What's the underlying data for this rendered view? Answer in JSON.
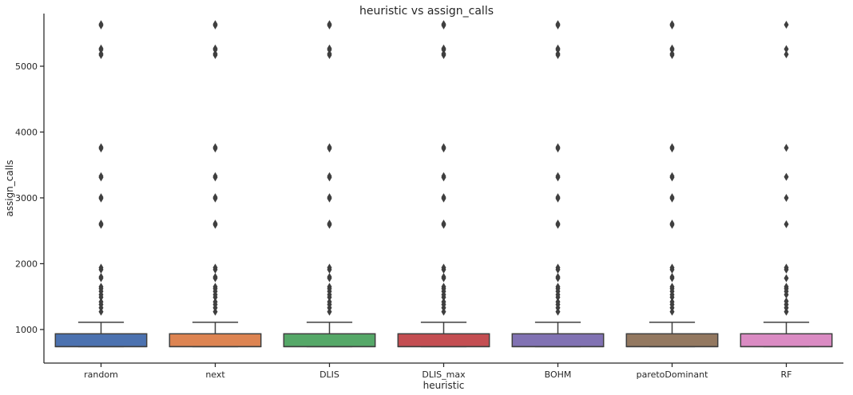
{
  "chart_data": {
    "type": "box",
    "title": "heuristic vs assign_calls",
    "xlabel": "heuristic",
    "ylabel": "assign_calls",
    "ylim": [
      490,
      5800
    ],
    "yticks": [
      1000,
      2000,
      3000,
      4000,
      5000
    ],
    "grid": false,
    "categories": [
      "random",
      "next",
      "DLIS",
      "DLIS_max",
      "BOHM",
      "paretoDominant",
      "RF"
    ],
    "colors": [
      "#4c72b0",
      "#dd8452",
      "#55a868",
      "#c44e52",
      "#8172b3",
      "#937860",
      "#da8bc3"
    ],
    "boxes": [
      {
        "name": "random",
        "q1": 740,
        "median": 740,
        "q3": 935,
        "whisker_low": 740,
        "whisker_high": 1110
      },
      {
        "name": "next",
        "q1": 740,
        "median": 740,
        "q3": 935,
        "whisker_low": 740,
        "whisker_high": 1110
      },
      {
        "name": "DLIS",
        "q1": 740,
        "median": 740,
        "q3": 935,
        "whisker_low": 740,
        "whisker_high": 1110
      },
      {
        "name": "DLIS_max",
        "q1": 740,
        "median": 740,
        "q3": 935,
        "whisker_low": 740,
        "whisker_high": 1110
      },
      {
        "name": "BOHM",
        "q1": 740,
        "median": 740,
        "q3": 935,
        "whisker_low": 740,
        "whisker_high": 1110
      },
      {
        "name": "paretoDominant",
        "q1": 740,
        "median": 740,
        "q3": 935,
        "whisker_low": 740,
        "whisker_high": 1110
      },
      {
        "name": "RF",
        "q1": 740,
        "median": 740,
        "q3": 935,
        "whisker_low": 740,
        "whisker_high": 1110
      }
    ],
    "outliers": [
      [
        1270,
        1330,
        1380,
        1420,
        1490,
        1530,
        1580,
        1620,
        1650,
        1780,
        1800,
        1910,
        1940,
        2590,
        2610,
        2990,
        3010,
        3310,
        3330,
        3750,
        3770,
        5170,
        5190,
        5250,
        5270,
        5620,
        5640
      ],
      [
        1270,
        1330,
        1380,
        1420,
        1490,
        1530,
        1580,
        1620,
        1650,
        1780,
        1800,
        1910,
        1940,
        2590,
        2610,
        2990,
        3010,
        3310,
        3330,
        3750,
        3770,
        5170,
        5190,
        5250,
        5270,
        5620,
        5640
      ],
      [
        1270,
        1330,
        1380,
        1420,
        1490,
        1530,
        1580,
        1620,
        1650,
        1780,
        1800,
        1910,
        1940,
        2590,
        2610,
        2990,
        3010,
        3310,
        3330,
        3750,
        3770,
        5170,
        5190,
        5250,
        5270,
        5620,
        5640
      ],
      [
        1270,
        1330,
        1380,
        1420,
        1490,
        1530,
        1580,
        1620,
        1650,
        1780,
        1800,
        1910,
        1940,
        2590,
        2610,
        2990,
        3010,
        3310,
        3330,
        3750,
        3770,
        5170,
        5190,
        5250,
        5270,
        5620,
        5640
      ],
      [
        1270,
        1330,
        1380,
        1420,
        1490,
        1530,
        1580,
        1620,
        1650,
        1780,
        1800,
        1910,
        1940,
        2590,
        2610,
        2990,
        3010,
        3310,
        3330,
        3750,
        3770,
        5170,
        5190,
        5250,
        5270,
        5620,
        5640
      ],
      [
        1270,
        1330,
        1380,
        1420,
        1490,
        1530,
        1580,
        1620,
        1650,
        1780,
        1800,
        1910,
        1940,
        2590,
        2610,
        2990,
        3010,
        3310,
        3330,
        3750,
        3770,
        5170,
        5190,
        5250,
        5270,
        5620,
        5640
      ],
      [
        1270,
        1330,
        1380,
        1430,
        1530,
        1580,
        1620,
        1650,
        1780,
        1910,
        1940,
        2600,
        3000,
        3320,
        3760,
        5180,
        5260,
        5630
      ]
    ]
  }
}
